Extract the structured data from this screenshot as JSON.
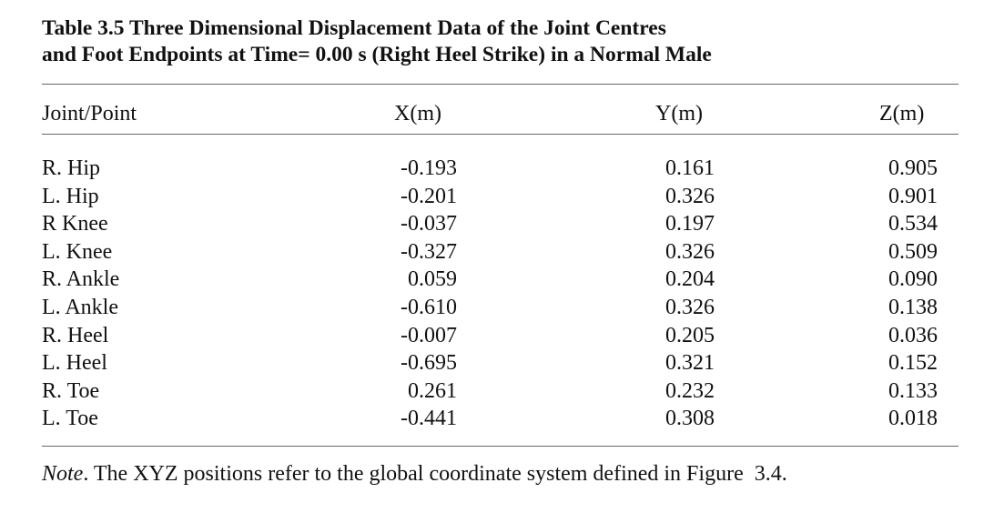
{
  "caption": {
    "line1": "Table 3.5 Three Dimensional Displacement Data of the Joint Centres",
    "line2": "and Foot Endpoints at Time= 0.00 s (Right Heel Strike) in a Normal Male"
  },
  "headers": {
    "name": "Joint/Point",
    "x": "X(m)",
    "y": "Y(m)",
    "z": "Z(m)"
  },
  "rows": [
    {
      "name": "R. Hip",
      "x": "-0.193",
      "y": "0.161",
      "z": "0.905"
    },
    {
      "name": "L. Hip",
      "x": "-0.201",
      "y": "0.326",
      "z": "0.901"
    },
    {
      "name": "R Knee",
      "x": "-0.037",
      "y": "0.197",
      "z": "0.534"
    },
    {
      "name": "L. Knee",
      "x": "-0.327",
      "y": "0.326",
      "z": "0.509"
    },
    {
      "name": "R. Ankle",
      "x": "0.059",
      "y": "0.204",
      "z": "0.090"
    },
    {
      "name": "L. Ankle",
      "x": "-0.610",
      "y": "0.326",
      "z": "0.138"
    },
    {
      "name": "R. Heel",
      "x": "-0.007",
      "y": "0.205",
      "z": "0.036"
    },
    {
      "name": "L. Heel",
      "x": "-0.695",
      "y": "0.321",
      "z": "0.152"
    },
    {
      "name": "R. Toe",
      "x": "0.261",
      "y": "0.232",
      "z": "0.133"
    },
    {
      "name": "L. Toe",
      "x": "-0.441",
      "y": "0.308",
      "z": "0.018"
    }
  ],
  "note": {
    "label": "Note",
    "text": ". The XYZ positions refer to the global coordinate system defined in Figure  3.4."
  }
}
